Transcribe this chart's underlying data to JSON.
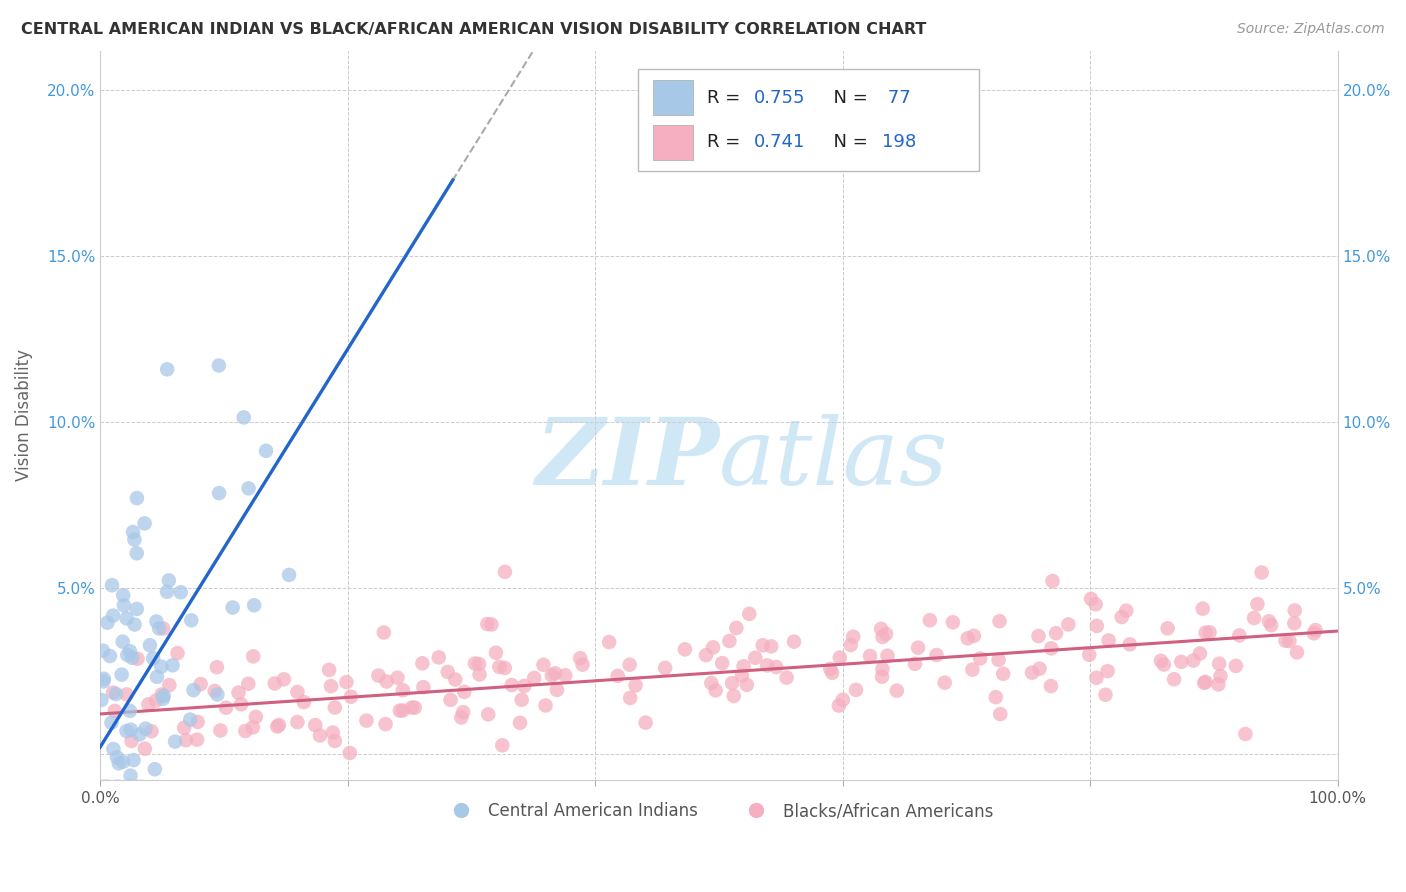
{
  "title": "CENTRAL AMERICAN INDIAN VS BLACK/AFRICAN AMERICAN VISION DISABILITY CORRELATION CHART",
  "source": "Source: ZipAtlas.com",
  "ylabel": "Vision Disability",
  "xlim": [
    0.0,
    1.0
  ],
  "ylim": [
    -0.008,
    0.212
  ],
  "x_ticks": [
    0.0,
    0.2,
    0.4,
    0.6,
    0.8,
    1.0
  ],
  "x_tick_labels": [
    "0.0%",
    "",
    "",
    "",
    "",
    "100.0%"
  ],
  "y_ticks": [
    0.0,
    0.05,
    0.1,
    0.15,
    0.2
  ],
  "y_tick_labels_left": [
    "",
    "5.0%",
    "10.0%",
    "15.0%",
    "20.0%"
  ],
  "y_tick_labels_right": [
    "",
    "5.0%",
    "10.0%",
    "15.0%",
    "20.0%"
  ],
  "blue_R": 0.755,
  "blue_N": 77,
  "pink_R": 0.741,
  "pink_N": 198,
  "blue_color": "#a8c8e8",
  "pink_color": "#f5afc0",
  "blue_line_color": "#2266cc",
  "pink_line_color": "#d06080",
  "tick_color": "#4499dd",
  "watermark_color": "#d0e8f5",
  "legend_label_blue": "Central American Indians",
  "legend_label_pink": "Blacks/African Americans"
}
